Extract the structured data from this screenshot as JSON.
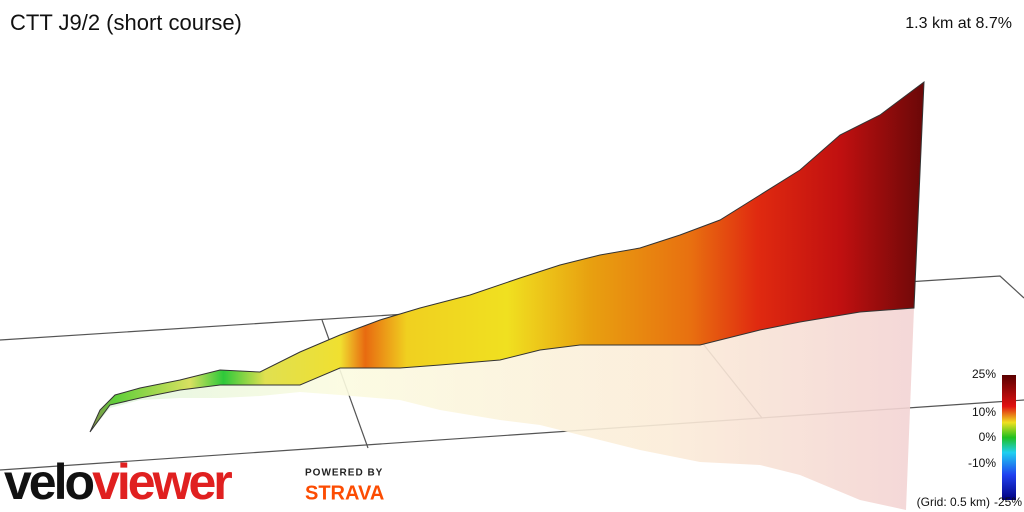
{
  "header": {
    "title": "CTT J9/2 (short course)",
    "summary": "1.3 km at 8.7%"
  },
  "legend": {
    "ticks": [
      "25%",
      "10%",
      "0%",
      "-10%",
      "-25%"
    ],
    "grid_note": "(Grid: 0.5 km)"
  },
  "branding": {
    "logo_part1": "velo",
    "logo_part2": "viewer",
    "powered_by": "POWERED BY",
    "partner": "STRAVA"
  }
}
